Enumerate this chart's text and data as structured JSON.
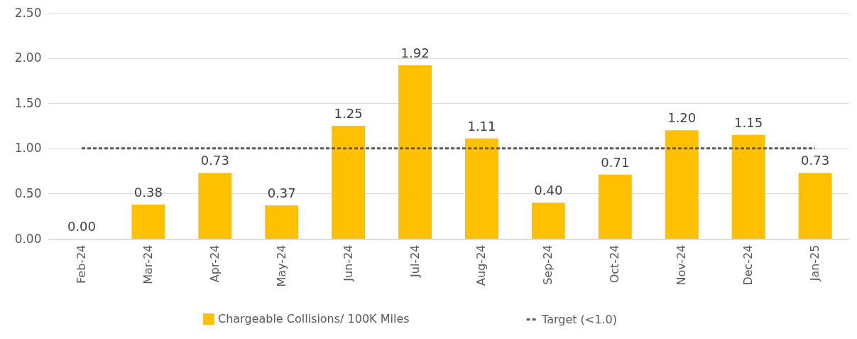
{
  "chart_data": {
    "type": "bar",
    "categories": [
      "Feb-24",
      "Mar-24",
      "Apr-24",
      "May-24",
      "Jun-24",
      "Jul-24",
      "Aug-24",
      "Sep-24",
      "Oct-24",
      "Nov-24",
      "Dec-24",
      "Jan-25"
    ],
    "series": [
      {
        "name": "Chargeable Collisions/ 100K Miles",
        "color": "#ffc000",
        "values": [
          0.0,
          0.38,
          0.73,
          0.37,
          1.25,
          1.92,
          1.11,
          0.4,
          0.71,
          1.2,
          1.15,
          0.73
        ],
        "value_labels": [
          "0.00",
          "0.38",
          "0.73",
          "0.37",
          "1.25",
          "1.92",
          "1.11",
          "0.40",
          "0.71",
          "1.20",
          "1.15",
          "0.73"
        ]
      },
      {
        "name": "Target (<1.0)",
        "type": "line",
        "color": "#595959",
        "line_style": "dashed",
        "marker": "none",
        "values": [
          1,
          1,
          1,
          1,
          1,
          1,
          1,
          1,
          1,
          1,
          1,
          1
        ]
      }
    ],
    "ylim": [
      0,
      2.5
    ],
    "yticks": [
      {
        "value": 0,
        "label": "0.00"
      },
      {
        "value": 0.5,
        "label": "0.50"
      },
      {
        "value": 1,
        "label": "1.00"
      },
      {
        "value": 1.5,
        "label": "1.50"
      },
      {
        "value": 2,
        "label": "2.00"
      },
      {
        "value": 2.5,
        "label": "2.50"
      }
    ],
    "grid": "y",
    "legend": "bottom"
  }
}
